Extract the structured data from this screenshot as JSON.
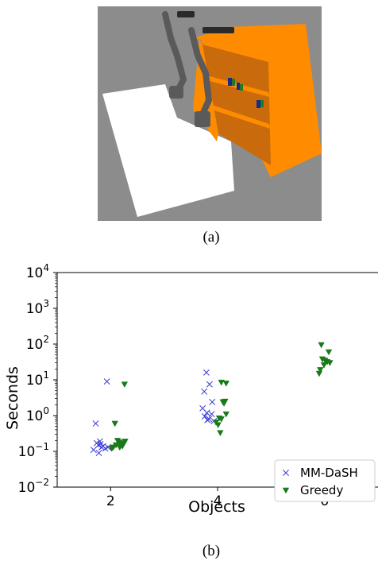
{
  "figure": {
    "caption_a": "(a)",
    "caption_b": "(b)"
  },
  "scene": {
    "colors": {
      "background": "#8c8c8c",
      "table": "#ffffff",
      "shelf": "#ff8c00",
      "shelf_dark": "#c96a0c",
      "robot": "#5a5a5a",
      "object_blue": "#1a2a8c",
      "object_green": "#1f7a2a"
    }
  },
  "chart_data": {
    "type": "scatter",
    "xlabel": "Objects",
    "ylabel": "Seconds",
    "yscale": "log",
    "ylim": [
      0.01,
      10000
    ],
    "xlim": [
      1.0,
      7.0
    ],
    "xticks": [
      2,
      4,
      6
    ],
    "xtick_labels": [
      "2",
      "4",
      "6"
    ],
    "yticks": [
      0.01,
      0.1,
      1,
      10,
      100,
      1000,
      10000
    ],
    "ytick_labels": [
      {
        "base": "10",
        "exp": "−2"
      },
      {
        "base": "10",
        "exp": "−1"
      },
      {
        "base": "10",
        "exp": "0"
      },
      {
        "base": "10",
        "exp": "1"
      },
      {
        "base": "10",
        "exp": "2"
      },
      {
        "base": "10",
        "exp": "3"
      },
      {
        "base": "10",
        "exp": "4"
      }
    ],
    "legend_position": "lower right",
    "grid": false,
    "series": [
      {
        "name": "MM-DaSH",
        "marker": "x",
        "color": "#3b3bd6",
        "points": [
          {
            "x": 1.72,
            "y": 0.6
          },
          {
            "x": 1.93,
            "y": 9.0
          },
          {
            "x": 1.68,
            "y": 0.11
          },
          {
            "x": 1.74,
            "y": 0.17
          },
          {
            "x": 1.77,
            "y": 0.15
          },
          {
            "x": 1.8,
            "y": 0.19
          },
          {
            "x": 1.83,
            "y": 0.13
          },
          {
            "x": 1.86,
            "y": 0.14
          },
          {
            "x": 1.9,
            "y": 0.12
          },
          {
            "x": 1.78,
            "y": 0.09
          },
          {
            "x": 1.95,
            "y": 0.13
          },
          {
            "x": 1.81,
            "y": 0.16
          },
          {
            "x": 3.79,
            "y": 16.0
          },
          {
            "x": 3.85,
            "y": 7.5
          },
          {
            "x": 3.75,
            "y": 4.7
          },
          {
            "x": 3.9,
            "y": 2.4
          },
          {
            "x": 3.72,
            "y": 1.6
          },
          {
            "x": 3.8,
            "y": 1.2
          },
          {
            "x": 3.89,
            "y": 1.1
          },
          {
            "x": 3.76,
            "y": 0.95
          },
          {
            "x": 3.84,
            "y": 0.8
          },
          {
            "x": 3.81,
            "y": 0.75
          },
          {
            "x": 3.93,
            "y": 0.7
          }
        ]
      },
      {
        "name": "Greedy",
        "marker": "v",
        "color": "#1a7a1a",
        "points": [
          {
            "x": 2.26,
            "y": 7.5
          },
          {
            "x": 2.08,
            "y": 0.6
          },
          {
            "x": 2.05,
            "y": 0.13
          },
          {
            "x": 2.1,
            "y": 0.15
          },
          {
            "x": 2.13,
            "y": 0.2
          },
          {
            "x": 2.16,
            "y": 0.18
          },
          {
            "x": 2.19,
            "y": 0.16
          },
          {
            "x": 2.22,
            "y": 0.14
          },
          {
            "x": 2.25,
            "y": 0.17
          },
          {
            "x": 2.27,
            "y": 0.19
          },
          {
            "x": 2.02,
            "y": 0.12
          },
          {
            "x": 2.17,
            "y": 0.13
          },
          {
            "x": 4.07,
            "y": 8.5
          },
          {
            "x": 4.16,
            "y": 8.0
          },
          {
            "x": 4.1,
            "y": 2.4
          },
          {
            "x": 4.12,
            "y": 2.2
          },
          {
            "x": 4.14,
            "y": 2.5
          },
          {
            "x": 4.16,
            "y": 1.1
          },
          {
            "x": 4.03,
            "y": 0.85
          },
          {
            "x": 4.07,
            "y": 0.8
          },
          {
            "x": 3.97,
            "y": 0.65
          },
          {
            "x": 4.01,
            "y": 0.55
          },
          {
            "x": 4.05,
            "y": 0.33
          },
          {
            "x": 5.94,
            "y": 95.0
          },
          {
            "x": 6.08,
            "y": 60.0
          },
          {
            "x": 5.96,
            "y": 38.0
          },
          {
            "x": 6.01,
            "y": 35.0
          },
          {
            "x": 6.05,
            "y": 32.0
          },
          {
            "x": 6.1,
            "y": 30.0
          },
          {
            "x": 5.99,
            "y": 26.0
          },
          {
            "x": 5.92,
            "y": 19.0
          },
          {
            "x": 5.9,
            "y": 15.0
          }
        ]
      }
    ]
  }
}
